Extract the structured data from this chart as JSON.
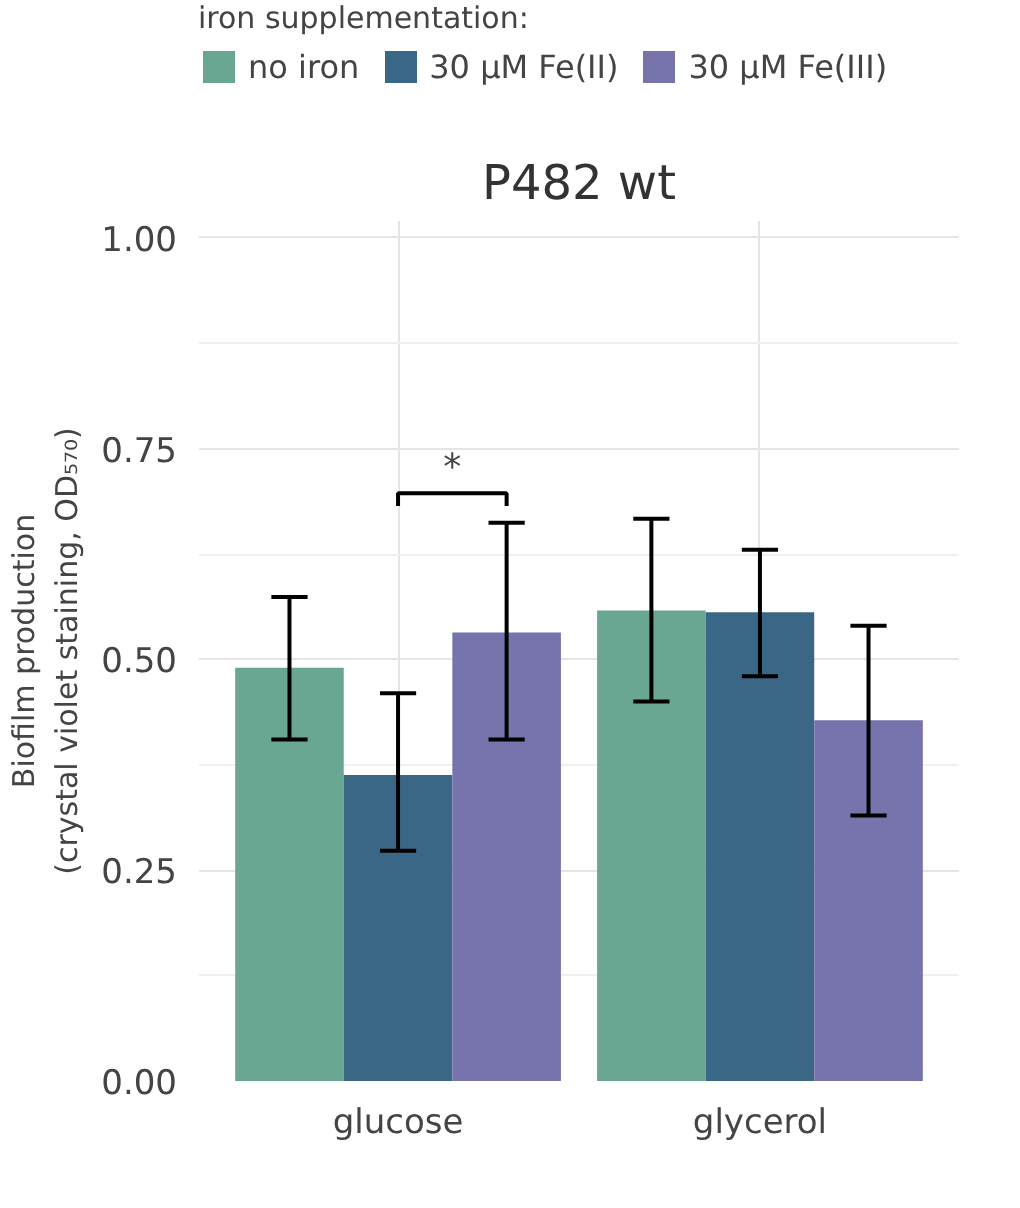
{
  "chart_data": {
    "type": "bar",
    "title": "P482 wt",
    "ylabel": "Biofilm production\n(crystal violet staining, OD₅₇₀)",
    "legend_title": "iron supplementation:",
    "categories": [
      "glucose",
      "glycerol"
    ],
    "series": [
      {
        "name": "no iron",
        "color": "#69a792",
        "values": [
          0.49,
          0.558
        ],
        "errors": [
          [
            0.405,
            0.574
          ],
          [
            0.45,
            0.667
          ]
        ]
      },
      {
        "name": "30 µM Fe(II)",
        "color": "#3b6786",
        "values": [
          0.363,
          0.556
        ],
        "errors": [
          [
            0.273,
            0.46
          ],
          [
            0.48,
            0.63
          ]
        ]
      },
      {
        "name": "30 µM Fe(III)",
        "color": "#7673ad",
        "values": [
          0.532,
          0.428
        ],
        "errors": [
          [
            0.405,
            0.662
          ],
          [
            0.315,
            0.54
          ]
        ]
      }
    ],
    "ylim": [
      0,
      1.02
    ],
    "yticks": [
      {
        "value": 0,
        "label": "0.00"
      },
      {
        "value": 0.25,
        "label": "0.25"
      },
      {
        "value": 0.5,
        "label": "0.50"
      },
      {
        "value": 0.75,
        "label": "0.75"
      },
      {
        "value": 1,
        "label": "1.00"
      }
    ],
    "annotations": [
      "*"
    ],
    "grid": true,
    "legend": "top"
  }
}
